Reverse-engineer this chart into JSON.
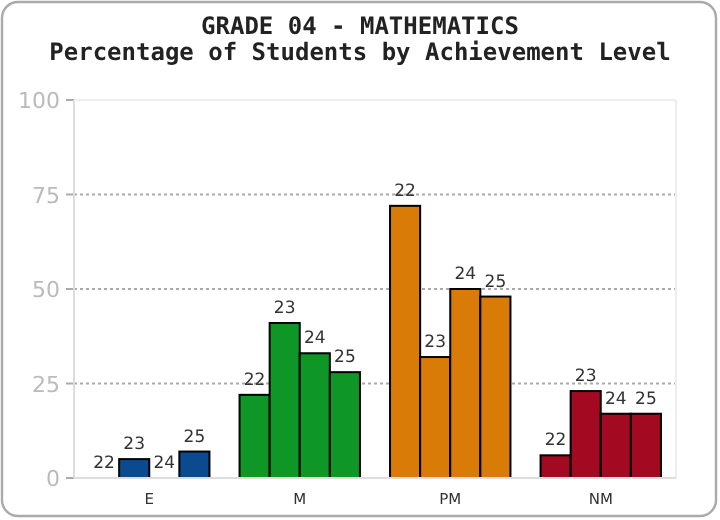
{
  "chart_data": {
    "type": "bar",
    "title": "GRADE 04 - MATHEMATICS",
    "subtitle": "Percentage of Students by Achievement Level",
    "categories": [
      "E",
      "M",
      "PM",
      "NM"
    ],
    "series": [
      {
        "name": "22",
        "colors": [
          "#0b4a8f",
          "#0e9627",
          "#d97b07",
          "#a30a22"
        ],
        "values": [
          0,
          22,
          72,
          6
        ]
      },
      {
        "name": "23",
        "colors": [
          "#0b4a8f",
          "#0e9627",
          "#d97b07",
          "#a30a22"
        ],
        "values": [
          5,
          41,
          32,
          23
        ]
      },
      {
        "name": "24",
        "colors": [
          "#0b4a8f",
          "#0e9627",
          "#d97b07",
          "#a30a22"
        ],
        "values": [
          0,
          33,
          50,
          17
        ]
      },
      {
        "name": "25",
        "colors": [
          "#0b4a8f",
          "#0e9627",
          "#d97b07",
          "#a30a22"
        ],
        "values": [
          7,
          28,
          48,
          17
        ]
      }
    ],
    "ylim": [
      0,
      100
    ],
    "yticks": [
      0,
      25,
      50,
      75,
      100
    ],
    "grid": "y"
  }
}
